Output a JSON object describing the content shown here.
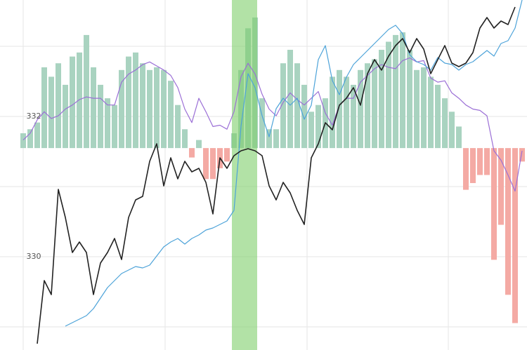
{
  "chart_data": {
    "type": "combo",
    "ylim": [
      328.67,
      333.66
    ],
    "yticks": [
      330,
      332
    ],
    "y2lim": [
      -1.5,
      1.1
    ],
    "grid": true,
    "series": [
      {
        "type": "bar",
        "axis": "y2",
        "color": "#a9d3c0",
        "negative_color": "#f4aaa4",
        "values": [
          0.11,
          0.14,
          0.19,
          0.6,
          0.53,
          0.63,
          0.47,
          0.68,
          0.71,
          0.84,
          0.6,
          0.47,
          0.37,
          0.32,
          0.58,
          0.68,
          0.71,
          0.63,
          0.58,
          0.6,
          0.58,
          0.5,
          0.32,
          0.14,
          -0.07,
          0.06,
          -0.23,
          -0.23,
          -0.15,
          -0.1,
          0.11,
          0.58,
          0.89,
          0.97,
          0.37,
          0.14,
          0.14,
          0.63,
          0.73,
          0.63,
          0.47,
          0.27,
          0.32,
          0.37,
          0.53,
          0.58,
          0.53,
          0.47,
          0.58,
          0.63,
          0.66,
          0.73,
          0.79,
          0.84,
          0.86,
          0.73,
          0.58,
          0.6,
          0.53,
          0.47,
          0.37,
          0.27,
          0.16,
          -0.31,
          -0.26,
          -0.2,
          -0.2,
          -0.83,
          -0.57,
          -1.09,
          -1.3,
          -0.1
        ]
      },
      {
        "type": "line",
        "axis": "y2",
        "color": "#9b6fd6",
        "values": [
          0.06,
          0.11,
          0.21,
          0.27,
          0.22,
          0.24,
          0.29,
          0.32,
          0.36,
          0.38,
          0.37,
          0.37,
          0.32,
          0.32,
          0.49,
          0.55,
          0.58,
          0.62,
          0.64,
          0.61,
          0.58,
          0.54,
          0.45,
          0.29,
          0.19,
          0.37,
          0.27,
          0.16,
          0.17,
          0.14,
          0.27,
          0.53,
          0.63,
          0.55,
          0.4,
          0.29,
          0.24,
          0.34,
          0.41,
          0.36,
          0.32,
          0.37,
          0.42,
          0.26,
          0.17,
          0.32,
          0.37,
          0.37,
          0.49,
          0.54,
          0.59,
          0.62,
          0.6,
          0.59,
          0.65,
          0.67,
          0.64,
          0.65,
          0.52,
          0.49,
          0.5,
          0.41,
          0.37,
          0.32,
          0.29,
          0.28,
          0.24,
          -0.02,
          -0.09,
          -0.2,
          -0.32,
          -0.02
        ]
      },
      {
        "type": "line",
        "color": "#4da3d9",
        "values": [
          null,
          null,
          null,
          null,
          null,
          null,
          329.01,
          329.06,
          329.11,
          329.16,
          329.26,
          329.41,
          329.56,
          329.66,
          329.76,
          329.81,
          329.86,
          329.84,
          329.88,
          330.01,
          330.14,
          330.21,
          330.26,
          330.18,
          330.26,
          330.31,
          330.38,
          330.41,
          330.46,
          330.51,
          330.66,
          331.86,
          332.61,
          332.41,
          332.01,
          331.71,
          332.11,
          332.26,
          332.16,
          332.26,
          331.96,
          332.16,
          332.81,
          333.01,
          332.51,
          332.31,
          332.56,
          332.74,
          332.84,
          332.94,
          333.04,
          333.14,
          333.24,
          333.3,
          333.18,
          332.88,
          332.78,
          332.74,
          332.66,
          332.84,
          332.76,
          332.74,
          332.66,
          332.74,
          332.78,
          332.86,
          332.94,
          332.86,
          333.04,
          333.08,
          333.26,
          333.66
        ]
      },
      {
        "type": "line",
        "color": "#222222",
        "values": [
          null,
          null,
          328.76,
          329.66,
          329.46,
          330.96,
          330.56,
          330.06,
          330.21,
          330.06,
          329.46,
          329.91,
          330.06,
          330.26,
          329.96,
          330.56,
          330.81,
          330.86,
          331.36,
          331.61,
          331.01,
          331.41,
          331.11,
          331.36,
          331.21,
          331.26,
          331.06,
          330.61,
          331.41,
          331.26,
          331.44,
          331.51,
          331.54,
          331.51,
          331.44,
          331.01,
          330.81,
          331.06,
          330.91,
          330.66,
          330.46,
          331.41,
          331.61,
          331.91,
          331.81,
          332.16,
          332.26,
          332.41,
          332.16,
          332.61,
          332.81,
          332.66,
          332.86,
          333.01,
          333.11,
          332.91,
          333.11,
          332.96,
          332.61,
          332.81,
          333.01,
          332.76,
          332.71,
          332.76,
          332.91,
          333.26,
          333.41,
          333.26,
          333.36,
          333.31,
          333.56,
          null
        ]
      }
    ]
  }
}
